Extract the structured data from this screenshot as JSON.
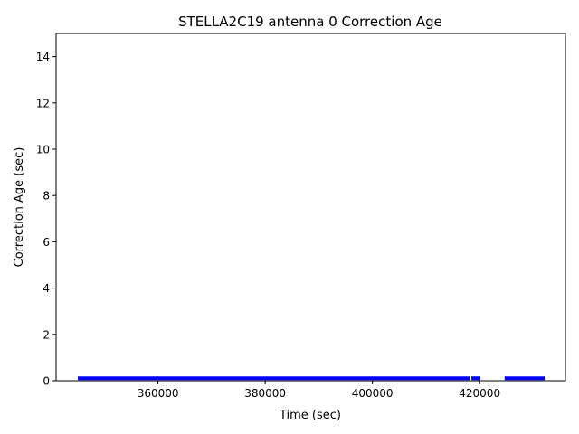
{
  "chart_data": {
    "type": "line",
    "title": "STELLA2C19 antenna 0 Correction Age",
    "xlabel": "Time (sec)",
    "ylabel": "Correction Age (sec)",
    "xlim": [
      341000,
      436000
    ],
    "ylim": [
      0,
      15
    ],
    "xticks": [
      360000,
      380000,
      400000,
      420000
    ],
    "xtick_labels": [
      "360000",
      "380000",
      "400000",
      "420000"
    ],
    "yticks": [
      0,
      2,
      4,
      6,
      8,
      10,
      12,
      14
    ],
    "ytick_labels": [
      "0",
      "2",
      "4",
      "6",
      "8",
      "10",
      "12",
      "14"
    ],
    "grid": false,
    "series": [
      {
        "color": "#0000ff",
        "segments": [
          {
            "x": [
              345400,
              417800
            ],
            "y": [
              0.05,
              0.05
            ]
          },
          {
            "x": [
              418800,
              419800
            ],
            "y": [
              0.05,
              0.05
            ]
          },
          {
            "x": [
              425000,
              431800
            ],
            "y": [
              0.05,
              0.05
            ]
          }
        ]
      }
    ]
  }
}
